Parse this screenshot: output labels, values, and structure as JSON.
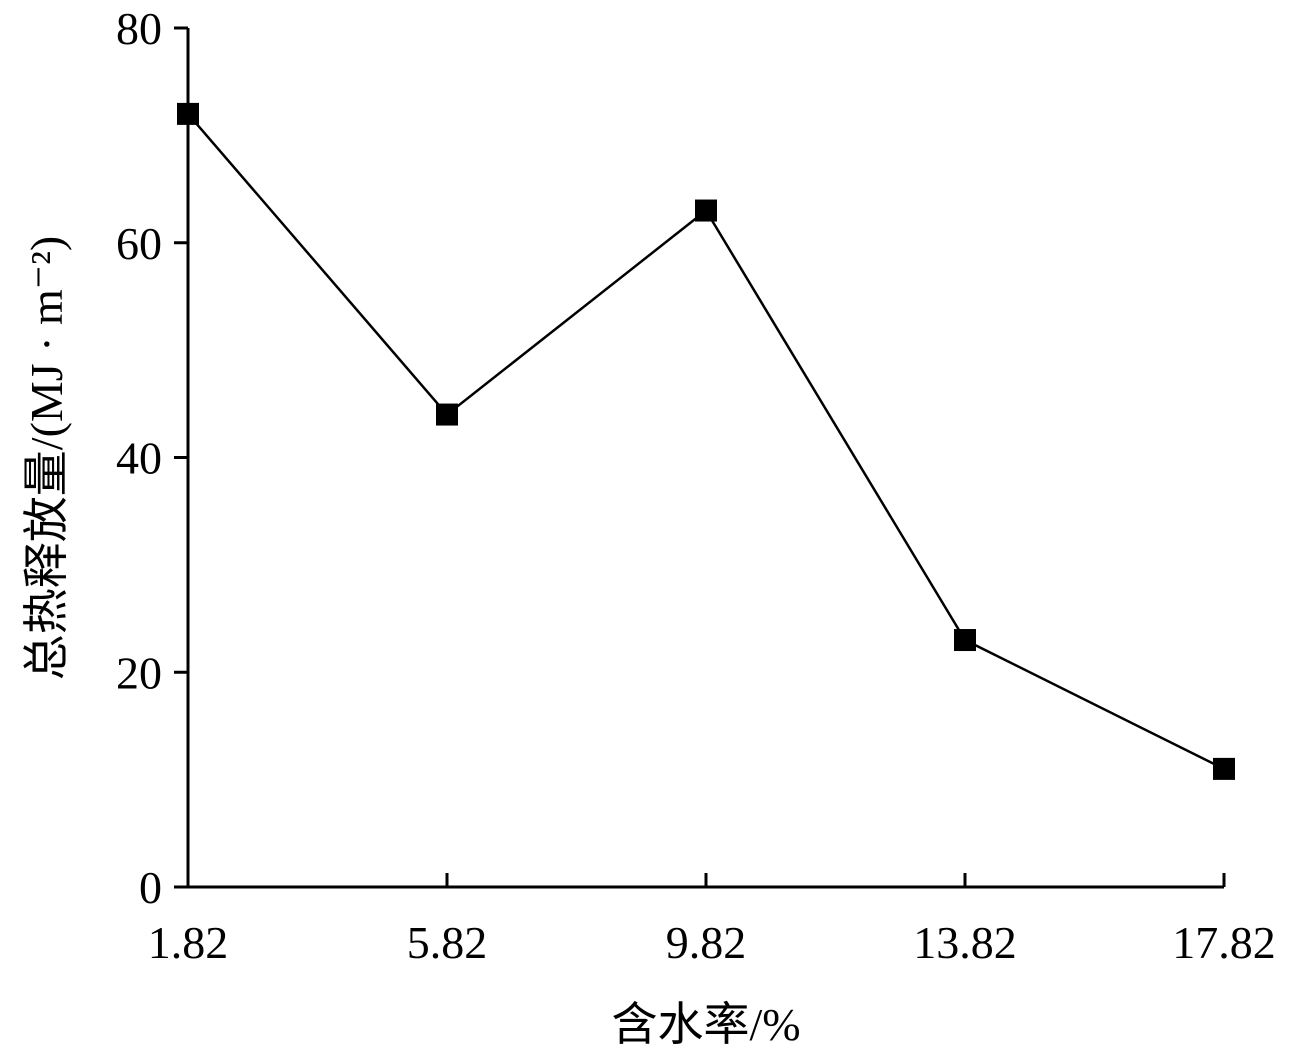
{
  "chart_data": {
    "type": "line",
    "title": "",
    "xlabel": "含水率/%",
    "ylabel": "总热释放量/(MJ · m⁻²)",
    "x": [
      "1.82",
      "5.82",
      "9.82",
      "13.82",
      "17.82"
    ],
    "y": [
      72,
      44,
      63,
      23,
      11
    ],
    "ylim": [
      0,
      80
    ],
    "yticks": [
      "0",
      "20",
      "40",
      "60",
      "80"
    ],
    "grid": false,
    "marker": "square",
    "line_color": "#000000",
    "marker_color": "#000000"
  }
}
